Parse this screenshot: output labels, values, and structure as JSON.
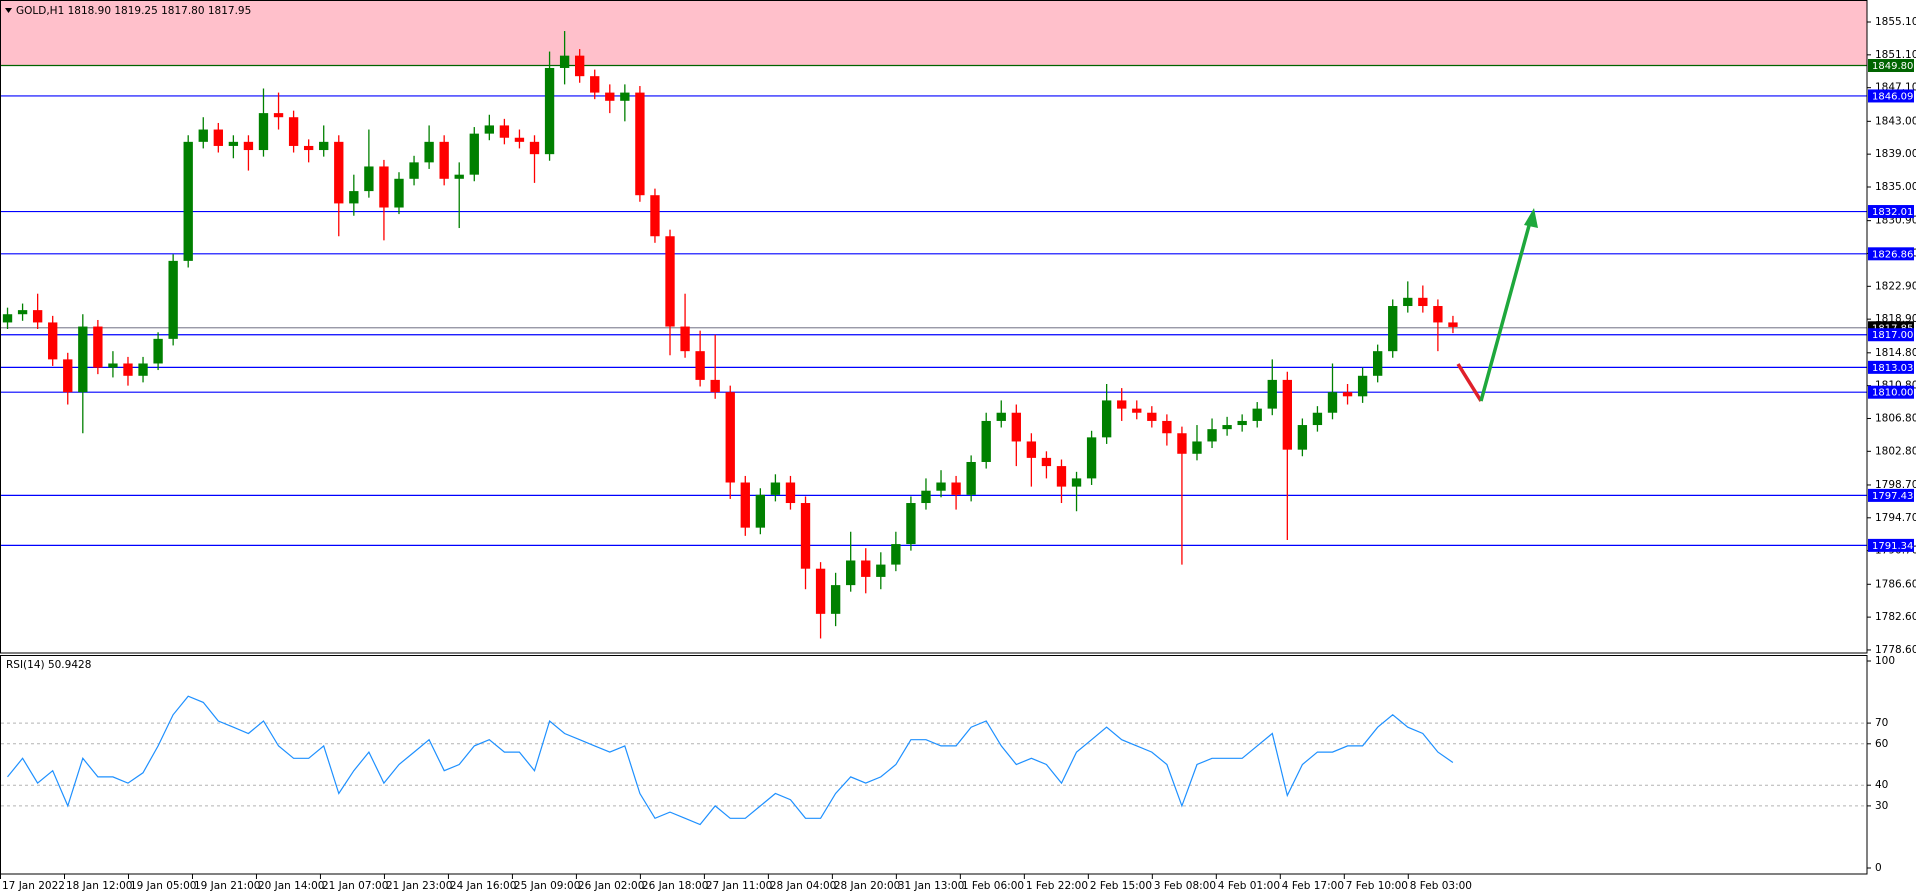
{
  "chart_data": [
    {
      "type": "candlestick",
      "title": "GOLD,H1  1818.90 1819.25 1817.80 1817.95",
      "x": [
        2,
        6,
        10,
        14,
        18,
        22,
        26,
        30,
        34,
        38,
        42,
        46,
        50,
        54,
        58,
        62,
        66,
        70,
        74,
        78,
        82,
        86,
        90,
        94,
        98,
        102,
        106,
        110,
        114,
        118,
        122,
        126,
        130,
        134,
        138,
        142,
        146,
        150,
        154,
        158,
        162,
        166,
        170,
        174,
        178,
        182,
        186,
        190,
        194,
        198,
        202,
        206,
        210,
        214,
        218,
        222,
        226,
        230,
        234,
        238,
        242,
        246,
        250,
        254,
        258,
        262,
        266,
        270,
        274,
        278,
        282,
        286,
        290,
        294,
        298,
        302,
        306,
        310,
        314,
        318,
        322,
        326,
        330,
        334,
        338,
        342,
        346,
        350,
        354,
        358,
        362,
        366,
        370,
        374,
        378,
        382,
        386
      ],
      "open": [
        1818.5,
        1819.5,
        1820,
        1818.5,
        1814,
        1810,
        1818,
        1813,
        1813.5,
        1812,
        1813.5,
        1816.5,
        1826,
        1840.5,
        1842,
        1840,
        1840.5,
        1839.5,
        1844,
        1843.5,
        1840,
        1839.5,
        1840.5,
        1833,
        1834.5,
        1837.5,
        1832.5,
        1836,
        1838,
        1840.5,
        1836,
        1836.5,
        1841.5,
        1842.5,
        1841,
        1840.5,
        1839,
        1849.5,
        1851,
        1848.5,
        1846.5,
        1845.5,
        1846.5,
        1834,
        1829,
        1818,
        1815,
        1811.5,
        1810,
        1799,
        1793.5,
        1797.5,
        1799,
        1796.5,
        1788.5,
        1783,
        1786.5,
        1789.5,
        1787.5,
        1789,
        1791.5,
        1796.5,
        1798,
        1799,
        1797.5,
        1801.5,
        1806.5,
        1807.5,
        1804,
        1802,
        1801,
        1798.5,
        1799.5,
        1804.5,
        1809,
        1808,
        1807.5,
        1806.5,
        1805,
        1802.5,
        1804,
        1805.5,
        1806,
        1806.5,
        1808,
        1811.5,
        1803,
        1806,
        1807.5,
        1810,
        1809.5,
        1812,
        1815,
        1820.5,
        1821.5,
        1820.5,
        1818.5
      ],
      "high": [
        1820.3,
        1820.8,
        1822.0,
        1819.3,
        1814.8,
        1819.5,
        1818.8,
        1815.0,
        1814.3,
        1814.3,
        1817.3,
        1826.8,
        1841.3,
        1843.5,
        1842.8,
        1841.3,
        1841.3,
        1847.0,
        1846.5,
        1844.3,
        1840.8,
        1842.5,
        1841.3,
        1836.5,
        1842.0,
        1838.3,
        1836.8,
        1838.8,
        1842.5,
        1841.3,
        1838.0,
        1842.3,
        1843.8,
        1843.3,
        1842.0,
        1841.3,
        1851.5,
        1854.0,
        1851.8,
        1849.3,
        1847.5,
        1847.5,
        1847.3,
        1834.8,
        1829.8,
        1822.0,
        1817.5,
        1817.0,
        1810.8,
        1799.8,
        1798.3,
        1800.0,
        1799.8,
        1797.3,
        1789.3,
        1788.0,
        1793.0,
        1791.0,
        1790.5,
        1793.0,
        1797.3,
        1799.5,
        1800.5,
        1799.8,
        1802.3,
        1807.5,
        1809.0,
        1808.5,
        1805.0,
        1802.8,
        1801.8,
        1800.3,
        1805.3,
        1811.0,
        1810.5,
        1809.0,
        1808.3,
        1807.3,
        1805.8,
        1806.0,
        1806.8,
        1807.0,
        1807.3,
        1808.8,
        1814.0,
        1812.5,
        1806.8,
        1808.3,
        1813.5,
        1811.0,
        1813.0,
        1815.8,
        1821.3,
        1823.5,
        1823.0,
        1821.3,
        1819.3
      ],
      "low": [
        1817.7,
        1818.7,
        1817.7,
        1813.2,
        1808.5,
        1805.0,
        1812.2,
        1811.8,
        1810.8,
        1811.2,
        1812.7,
        1815.7,
        1825.2,
        1839.7,
        1839.2,
        1838.5,
        1837.0,
        1838.7,
        1842.0,
        1839.2,
        1838.0,
        1838.7,
        1829.0,
        1831.5,
        1833.7,
        1828.5,
        1831.7,
        1835.2,
        1837.2,
        1835.2,
        1830.0,
        1835.7,
        1840.7,
        1840.2,
        1839.7,
        1835.5,
        1838.2,
        1847.5,
        1847.7,
        1845.7,
        1844.0,
        1843.0,
        1833.2,
        1828.2,
        1814.5,
        1814.2,
        1810.7,
        1809.2,
        1797.0,
        1792.5,
        1792.7,
        1796.7,
        1795.7,
        1786.0,
        1780.0,
        1781.5,
        1785.7,
        1785.5,
        1786.0,
        1788.2,
        1790.7,
        1795.7,
        1797.2,
        1795.7,
        1796.7,
        1800.7,
        1805.7,
        1801.0,
        1798.5,
        1799.5,
        1796.5,
        1795.5,
        1798.7,
        1803.7,
        1806.5,
        1806.7,
        1805.7,
        1803.5,
        1789.0,
        1801.7,
        1803.2,
        1804.7,
        1805.2,
        1805.7,
        1807.2,
        1792.0,
        1802.2,
        1805.2,
        1806.7,
        1808.5,
        1808.7,
        1811.2,
        1814.2,
        1819.7,
        1819.7,
        1815.0,
        1817.2
      ],
      "close": [
        1819.5,
        1820,
        1818.5,
        1814,
        1810,
        1818,
        1813,
        1813.5,
        1812,
        1813.5,
        1816.5,
        1826,
        1840.5,
        1842,
        1840,
        1840.5,
        1839.5,
        1844,
        1843.5,
        1840,
        1839.5,
        1840.5,
        1833,
        1834.5,
        1837.5,
        1832.5,
        1836,
        1838,
        1840.5,
        1836,
        1836.5,
        1841.5,
        1842.5,
        1841,
        1840.5,
        1839,
        1849.5,
        1851,
        1848.5,
        1846.5,
        1845.5,
        1846.5,
        1834,
        1829,
        1818,
        1815,
        1811.5,
        1810,
        1799,
        1793.5,
        1797.5,
        1799,
        1796.5,
        1788.5,
        1783,
        1786.5,
        1789.5,
        1787.5,
        1789,
        1791.5,
        1796.5,
        1798,
        1799,
        1797.5,
        1801.5,
        1806.5,
        1807.5,
        1804,
        1802,
        1801,
        1798.5,
        1799.5,
        1804.5,
        1809,
        1808,
        1807.5,
        1806.5,
        1805,
        1802.5,
        1804,
        1805.5,
        1806,
        1806.5,
        1808,
        1811.5,
        1803,
        1806,
        1807.5,
        1810,
        1809.5,
        1812,
        1815,
        1820.5,
        1821.5,
        1820.5,
        1818.5,
        1817.95
      ],
      "up_color": "#008000",
      "down_color": "#ff0000",
      "xlim": [
        0,
        496
      ],
      "xticks": [
        {
          "value": 0,
          "label": "17 Jan 2022"
        },
        {
          "value": 17,
          "label": "18 Jan 12:00"
        },
        {
          "value": 34,
          "label": "19 Jan 05:00"
        },
        {
          "value": 51,
          "label": "19 Jan 21:00"
        },
        {
          "value": 68,
          "label": "20 Jan 14:00"
        },
        {
          "value": 85,
          "label": "21 Jan 07:00"
        },
        {
          "value": 102,
          "label": "21 Jan 23:00"
        },
        {
          "value": 119,
          "label": "24 Jan 16:00"
        },
        {
          "value": 136,
          "label": "25 Jan 09:00"
        },
        {
          "value": 153,
          "label": "26 Jan 02:00"
        },
        {
          "value": 170,
          "label": "26 Jan 18:00"
        },
        {
          "value": 187,
          "label": "27 Jan 11:00"
        },
        {
          "value": 204,
          "label": "28 Jan 04:00"
        },
        {
          "value": 221,
          "label": "28 Jan 20:00"
        },
        {
          "value": 238,
          "label": "31 Jan 13:00"
        },
        {
          "value": 255,
          "label": "1 Feb 06:00"
        },
        {
          "value": 272,
          "label": "1 Feb 22:00"
        },
        {
          "value": 289,
          "label": "2 Feb 15:00"
        },
        {
          "value": 306,
          "label": "3 Feb 08:00"
        },
        {
          "value": 323,
          "label": "4 Feb 01:00"
        },
        {
          "value": 340,
          "label": "4 Feb 17:00"
        },
        {
          "value": 357,
          "label": "7 Feb 10:00"
        },
        {
          "value": 374,
          "label": "8 Feb 03:00"
        }
      ],
      "ylim": [
        1778.23,
        1857.78
      ],
      "yticks": [
        {
          "value": 1855.1,
          "label": "1855.10"
        },
        {
          "value": 1851.1,
          "label": "1851.10"
        },
        {
          "value": 1847.1,
          "label": "1847.10"
        },
        {
          "value": 1843,
          "label": "1843.00"
        },
        {
          "value": 1839,
          "label": "1839.00"
        },
        {
          "value": 1835,
          "label": "1835.00"
        },
        {
          "value": 1830.9,
          "label": "1830.90"
        },
        {
          "value": 1826.9,
          "label": "1826.90"
        },
        {
          "value": 1822.9,
          "label": "1822.90"
        },
        {
          "value": 1818.9,
          "label": "1818.90"
        },
        {
          "value": 1814.8,
          "label": "1814.80"
        },
        {
          "value": 1810.8,
          "label": "1810.80"
        },
        {
          "value": 1806.8,
          "label": "1806.80"
        },
        {
          "value": 1802.8,
          "label": "1802.80"
        },
        {
          "value": 1798.7,
          "label": "1798.70"
        },
        {
          "value": 1794.7,
          "label": "1794.70"
        },
        {
          "value": 1790.7,
          "label": "1790.70"
        },
        {
          "value": 1786.6,
          "label": "1786.60"
        },
        {
          "value": 1782.6,
          "label": "1782.60"
        },
        {
          "value": 1778.6,
          "label": "1778.60"
        }
      ],
      "zone": {
        "low": 1849.8,
        "color": "#ffc0cb"
      },
      "levels": [
        {
          "value": 1849.8,
          "label": "1849.80",
          "color": "#006400"
        },
        {
          "value": 1846.09,
          "label": "1846.09",
          "color": "#0000ff"
        },
        {
          "value": 1832.01,
          "label": "1832.01",
          "color": "#0000ff"
        },
        {
          "value": 1826.86,
          "label": "1826.86",
          "color": "#0000ff"
        },
        {
          "value": 1817.85,
          "label": "1817.85",
          "color": "#8c8c9c",
          "box": "#000000"
        },
        {
          "value": 1817.0,
          "label": "1817.00",
          "color": "#0000ff"
        },
        {
          "value": 1813.03,
          "label": "1813.03",
          "color": "#0000ff"
        },
        {
          "value": 1810.0,
          "label": "1810.00",
          "color": "#0000ff"
        },
        {
          "value": 1797.43,
          "label": "1797.43",
          "color": "#0000ff"
        },
        {
          "value": 1791.34,
          "label": "1791.34",
          "color": "#0000ff"
        }
      ]
    },
    {
      "type": "line",
      "title": "RSI(14) 50.9428",
      "color": "#1e90ff",
      "values": [
        44,
        53,
        41,
        47,
        30,
        53,
        44,
        44,
        41,
        46,
        59,
        74,
        83,
        80,
        71,
        68,
        65,
        71,
        59,
        53,
        53,
        59,
        36,
        47,
        56,
        41,
        50,
        56,
        62,
        47,
        50,
        59,
        62,
        56,
        56,
        47,
        71,
        65,
        62,
        59,
        56,
        59,
        36,
        24,
        27,
        24,
        21,
        30,
        24,
        24,
        30,
        36,
        33,
        24,
        24,
        36,
        44,
        41,
        44,
        50,
        62,
        62,
        59,
        59,
        68,
        71,
        59,
        50,
        53,
        50,
        41,
        56,
        62,
        68,
        62,
        59,
        56,
        50,
        30,
        50,
        53,
        53,
        53,
        59,
        65,
        35,
        50,
        56,
        56,
        59,
        59,
        68,
        74,
        68,
        65,
        56,
        50.9428
      ],
      "ylim": [
        -2.9,
        102.9
      ],
      "yticks": [
        0,
        30,
        40,
        60,
        70,
        100
      ],
      "levels": [
        30,
        40,
        60,
        70
      ]
    }
  ]
}
